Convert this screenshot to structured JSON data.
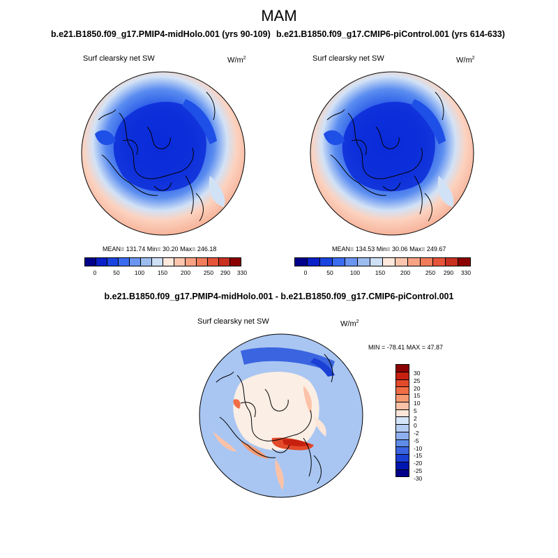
{
  "season": "MAM",
  "panel_left": {
    "title": "b.e21.B1850.f09_g17.PMIP4-midHolo.001 (yrs 90-109)",
    "variable": "Surf clearsky net SW",
    "units": "W/m",
    "units_exp": "2",
    "stats": "MEAN= 131.74  Min=  30.20  Max= 246.18"
  },
  "panel_right": {
    "title": "b.e21.B1850.f09_g17.CMIP6-piControl.001 (yrs 614-633)",
    "variable": "Surf clearsky net SW",
    "units": "W/m",
    "units_exp": "2",
    "stats": "MEAN= 134.53  Min=  30.06  Max= 249.67"
  },
  "panel_diff": {
    "title": "b.e21.B1850.f09_g17.PMIP4-midHolo.001 - b.e21.B1850.f09_g17.CMIP6-piControl.001",
    "variable": "Surf clearsky net SW",
    "units": "W/m",
    "units_exp": "2",
    "stats": "MIN = -78.41 MAX =  47.87"
  },
  "colorbar_abs": {
    "colors": [
      "#00008b",
      "#0a20c8",
      "#1a44e0",
      "#3a6cf0",
      "#6a95f0",
      "#9cbcf0",
      "#cde0f5",
      "#ffe8dc",
      "#fcc6ae",
      "#f7a283",
      "#f07c5a",
      "#e4553a",
      "#c8301f",
      "#8b0000"
    ],
    "ticks": [
      "0",
      "50",
      "100",
      "150",
      "200",
      "250",
      "290",
      "330"
    ]
  },
  "colorbar_diff": {
    "colors": [
      "#8b0000",
      "#c8200f",
      "#e24a2a",
      "#f06d45",
      "#f79a72",
      "#fcc2a8",
      "#fde6d8",
      "#d6e6fa",
      "#b5cdf3",
      "#8fb0f0",
      "#5f8ce8",
      "#3a64e0",
      "#1a3fd4",
      "#0016b0",
      "#00008b"
    ],
    "ticks": [
      "30",
      "25",
      "20",
      "15",
      "10",
      "5",
      "2",
      "0",
      "-2",
      "-5",
      "-10",
      "-15",
      "-20",
      "-25",
      "-30"
    ]
  }
}
